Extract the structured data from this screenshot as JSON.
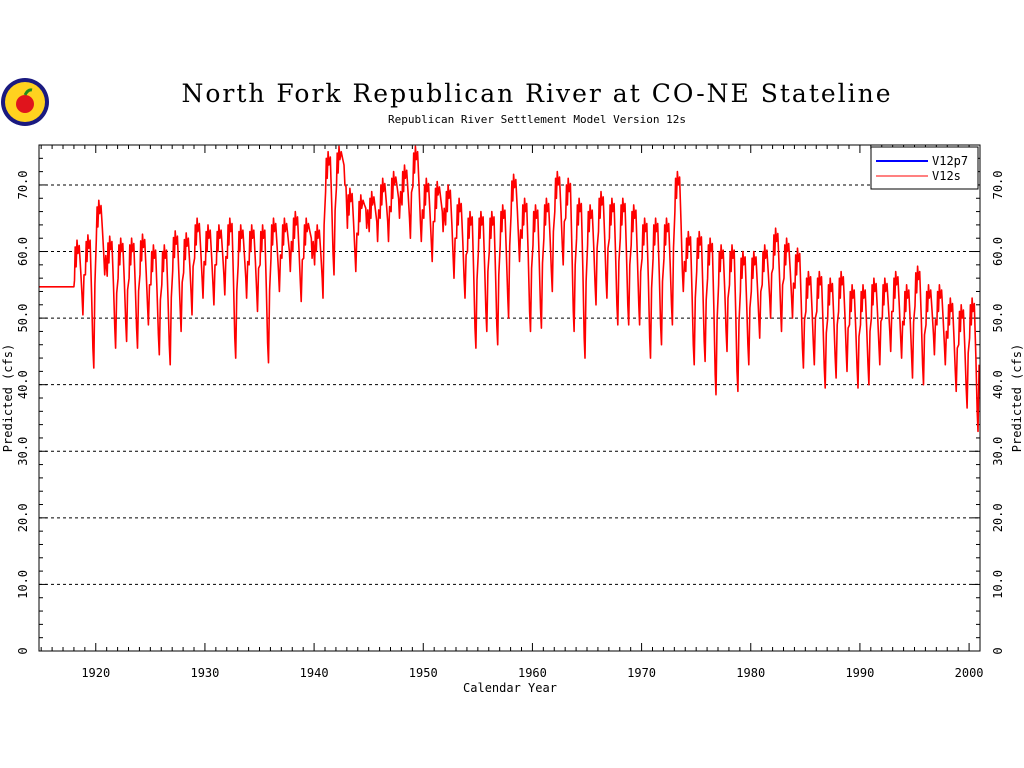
{
  "chart_data": {
    "type": "line",
    "title": "North Fork Republican River at CO-NE Stateline",
    "subtitle": "Republican River Settlement Model Version 12s",
    "xlabel": "Calendar Year",
    "ylabel_left": "Predicted (cfs)",
    "ylabel_right": "Predicted (cfs)",
    "xlim": [
      1914.8,
      2001.0
    ],
    "ylim": [
      0,
      76
    ],
    "x_ticks": [
      1920,
      1930,
      1940,
      1950,
      1960,
      1970,
      1980,
      1990,
      2000
    ],
    "y_ticks": [
      0,
      10,
      20,
      30,
      40,
      50,
      60,
      70
    ],
    "y_tick_labels": [
      "0",
      "10.0",
      "20.0",
      "30.0",
      "40.0",
      "50.0",
      "60.0",
      "70.0"
    ],
    "grid": "horizontal-dashed",
    "legend_position": "top-right",
    "legend": [
      {
        "name": "V12p7",
        "color": "#0000ff"
      },
      {
        "name": "V12s",
        "color": "#ff0000"
      }
    ],
    "series": [
      {
        "name": "V12s",
        "color": "#ff0000",
        "flat_segment": {
          "x": [
            1914.8,
            1918.0
          ],
          "y": 54.7
        },
        "annual_peaks": [
          [
            1918,
            61.7
          ],
          [
            1919,
            62.5
          ],
          [
            1920,
            67.7
          ],
          [
            1921,
            62.3
          ],
          [
            1922,
            62.0
          ],
          [
            1923,
            62.0
          ],
          [
            1924,
            62.6
          ],
          [
            1925,
            61.0
          ],
          [
            1926,
            61.0
          ],
          [
            1927,
            63.1
          ],
          [
            1928,
            62.8
          ],
          [
            1929,
            65.0
          ],
          [
            1930,
            64.0
          ],
          [
            1931,
            64.0
          ],
          [
            1932,
            65.0
          ],
          [
            1933,
            64.0
          ],
          [
            1934,
            64.0
          ],
          [
            1935,
            64.0
          ],
          [
            1936,
            65.0
          ],
          [
            1937,
            65.0
          ],
          [
            1938,
            66.0
          ],
          [
            1939,
            65.0
          ],
          [
            1940,
            64.0
          ],
          [
            1941,
            75.0
          ],
          [
            1942,
            75.8
          ],
          [
            1943,
            69.5
          ],
          [
            1944,
            68.5
          ],
          [
            1945,
            69.0
          ],
          [
            1946,
            71.0
          ],
          [
            1947,
            72.0
          ],
          [
            1948,
            73.0
          ],
          [
            1949,
            75.8
          ],
          [
            1950,
            71.0
          ],
          [
            1951,
            70.5
          ],
          [
            1952,
            70.0
          ],
          [
            1953,
            68.0
          ],
          [
            1954,
            66.0
          ],
          [
            1955,
            66.0
          ],
          [
            1956,
            66.0
          ],
          [
            1957,
            67.0
          ],
          [
            1958,
            71.6
          ],
          [
            1959,
            68.0
          ],
          [
            1960,
            67.0
          ],
          [
            1961,
            68.0
          ],
          [
            1962,
            72.0
          ],
          [
            1963,
            71.0
          ],
          [
            1964,
            68.0
          ],
          [
            1965,
            67.0
          ],
          [
            1966,
            69.0
          ],
          [
            1967,
            68.0
          ],
          [
            1968,
            68.0
          ],
          [
            1969,
            67.0
          ],
          [
            1970,
            65.0
          ],
          [
            1971,
            65.0
          ],
          [
            1972,
            65.0
          ],
          [
            1973,
            72.0
          ],
          [
            1974,
            63.0
          ],
          [
            1975,
            63.0
          ],
          [
            1976,
            62.0
          ],
          [
            1977,
            61.0
          ],
          [
            1978,
            61.0
          ],
          [
            1979,
            60.0
          ],
          [
            1980,
            60.0
          ],
          [
            1981,
            61.0
          ],
          [
            1982,
            63.5
          ],
          [
            1983,
            62.0
          ],
          [
            1984,
            60.5
          ],
          [
            1985,
            57.0
          ],
          [
            1986,
            57.0
          ],
          [
            1987,
            56.0
          ],
          [
            1988,
            57.0
          ],
          [
            1989,
            55.0
          ],
          [
            1990,
            55.0
          ],
          [
            1991,
            56.0
          ],
          [
            1992,
            56.0
          ],
          [
            1993,
            57.0
          ],
          [
            1994,
            55.0
          ],
          [
            1995,
            57.8
          ],
          [
            1996,
            55.0
          ],
          [
            1997,
            55.0
          ],
          [
            1998,
            53.0
          ],
          [
            1999,
            52.0
          ],
          [
            2000,
            53.0
          ]
        ],
        "annual_troughs": [
          [
            1918,
            50.5
          ],
          [
            1919,
            42.5
          ],
          [
            1920,
            56.5
          ],
          [
            1921,
            45.5
          ],
          [
            1922,
            46.5
          ],
          [
            1923,
            45.5
          ],
          [
            1924,
            49.0
          ],
          [
            1925,
            44.5
          ],
          [
            1926,
            43.0
          ],
          [
            1927,
            48.0
          ],
          [
            1928,
            50.5
          ],
          [
            1929,
            53.0
          ],
          [
            1930,
            52.0
          ],
          [
            1931,
            53.5
          ],
          [
            1932,
            44.0
          ],
          [
            1933,
            53.0
          ],
          [
            1934,
            51.0
          ],
          [
            1935,
            43.3
          ],
          [
            1936,
            54.0
          ],
          [
            1937,
            57.0
          ],
          [
            1938,
            52.5
          ],
          [
            1939,
            59.0
          ],
          [
            1940,
            53.0
          ],
          [
            1941,
            56.5
          ],
          [
            1942,
            70.0
          ],
          [
            1943,
            57.0
          ],
          [
            1944,
            63.5
          ],
          [
            1945,
            61.5
          ],
          [
            1946,
            61.5
          ],
          [
            1947,
            65.0
          ],
          [
            1948,
            62.0
          ],
          [
            1949,
            61.5
          ],
          [
            1950,
            58.5
          ],
          [
            1951,
            63.0
          ],
          [
            1952,
            56.0
          ],
          [
            1953,
            53.0
          ],
          [
            1954,
            45.5
          ],
          [
            1955,
            48.0
          ],
          [
            1956,
            46.0
          ],
          [
            1957,
            50.0
          ],
          [
            1958,
            58.5
          ],
          [
            1959,
            48.0
          ],
          [
            1960,
            48.5
          ],
          [
            1961,
            54.0
          ],
          [
            1962,
            58.0
          ],
          [
            1963,
            48.0
          ],
          [
            1964,
            44.0
          ],
          [
            1965,
            52.0
          ],
          [
            1966,
            53.0
          ],
          [
            1967,
            49.0
          ],
          [
            1968,
            49.0
          ],
          [
            1969,
            49.0
          ],
          [
            1970,
            44.0
          ],
          [
            1971,
            46.0
          ],
          [
            1972,
            49.0
          ],
          [
            1973,
            54.0
          ],
          [
            1974,
            43.0
          ],
          [
            1975,
            43.5
          ],
          [
            1976,
            38.5
          ],
          [
            1977,
            45.0
          ],
          [
            1978,
            39.0
          ],
          [
            1979,
            43.0
          ],
          [
            1980,
            47.0
          ],
          [
            1981,
            50.0
          ],
          [
            1982,
            48.0
          ],
          [
            1983,
            50.0
          ],
          [
            1984,
            42.5
          ],
          [
            1985,
            43.0
          ],
          [
            1986,
            39.5
          ],
          [
            1987,
            41.0
          ],
          [
            1988,
            42.0
          ],
          [
            1989,
            39.5
          ],
          [
            1990,
            40.0
          ],
          [
            1991,
            43.0
          ],
          [
            1992,
            45.0
          ],
          [
            1993,
            44.0
          ],
          [
            1994,
            41.0
          ],
          [
            1995,
            40.0
          ],
          [
            1996,
            44.5
          ],
          [
            1997,
            43.0
          ],
          [
            1998,
            39.0
          ],
          [
            1999,
            36.5
          ],
          [
            2000,
            33.0
          ]
        ]
      },
      {
        "name": "V12p7",
        "color": "#0000ff",
        "note_visible": "legend only"
      }
    ]
  }
}
